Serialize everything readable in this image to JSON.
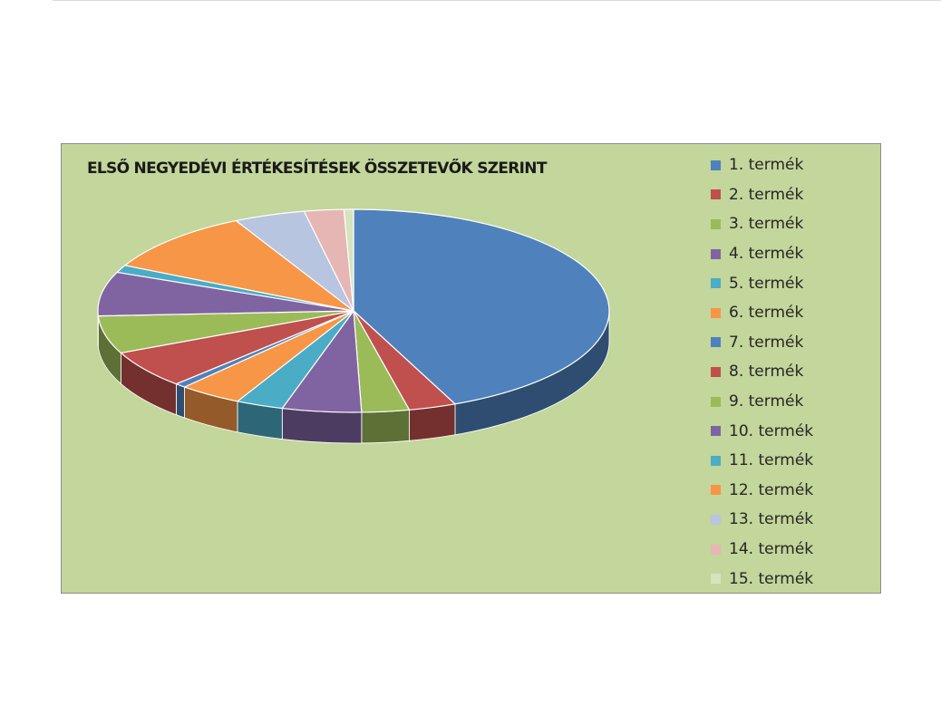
{
  "chart_data": {
    "type": "pie",
    "title": "ELSŐ NEGYEDÉVI ÉRTÉKESÍTÉSEK ÖSSZETEVŐK SZERINT",
    "categories": [
      "1. termék",
      "2. termék",
      "3. termék",
      "4. termék",
      "5. termék",
      "6. termék",
      "7. termék",
      "8. termék",
      "9. termék",
      "10. termék",
      "11. termék",
      "12. termék",
      "13. termék",
      "14. termék",
      "15. termék"
    ],
    "values": [
      43.5,
      3.0,
      3.0,
      5.0,
      3.0,
      4.0,
      0.7,
      6.0,
      6.0,
      7.0,
      1.2,
      10.0,
      4.5,
      2.5,
      0.6
    ],
    "colors": [
      "#4f81bd",
      "#c0504d",
      "#9bbb59",
      "#8064a2",
      "#4bacc6",
      "#f79646",
      "#4f81bd",
      "#c0504d",
      "#9bbb59",
      "#8064a2",
      "#4bacc6",
      "#f79646",
      "#b7c5e0",
      "#e6b6b5",
      "#d5e4bd"
    ],
    "legend_position": "right",
    "style": "3d"
  }
}
